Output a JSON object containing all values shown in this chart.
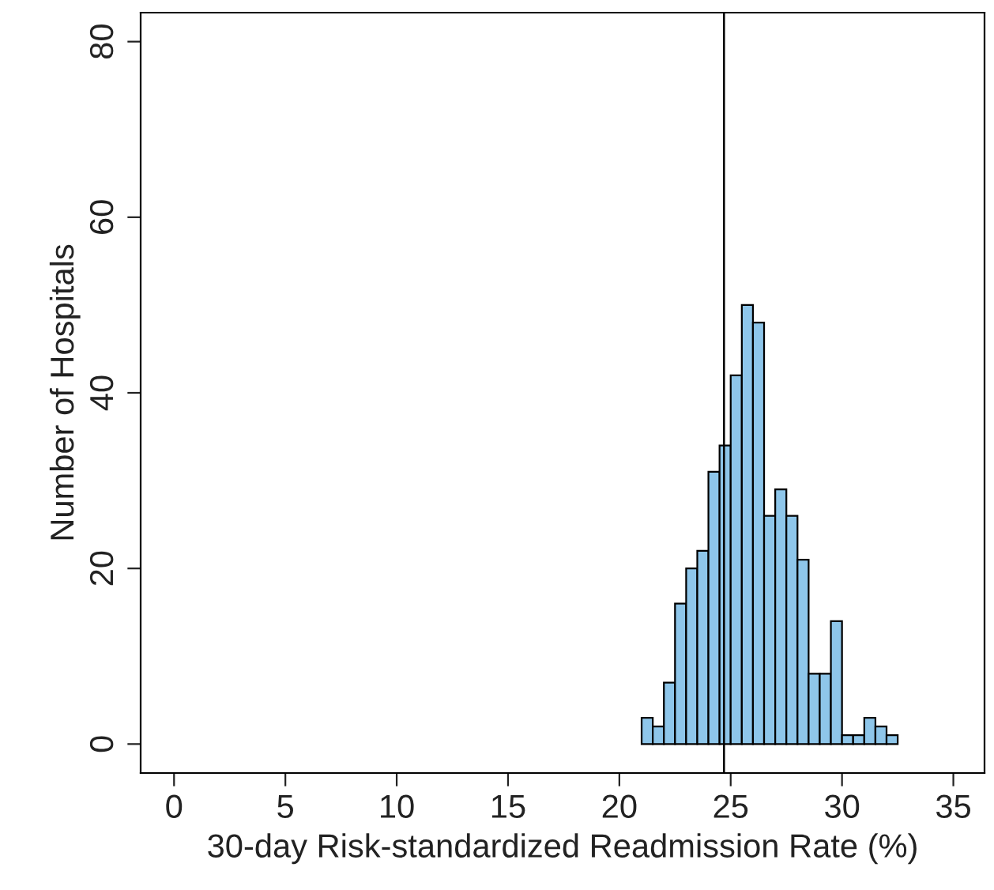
{
  "chart_data": {
    "type": "histogram",
    "xlabel": "30-day Risk-standardized Readmission Rate (%)",
    "ylabel": "Number of Hospitals",
    "bins": [
      21.0,
      21.5,
      22.0,
      22.5,
      23.0,
      23.5,
      24.0,
      24.5,
      25.0,
      25.5,
      26.0,
      26.5,
      27.0,
      27.5,
      28.0,
      28.5,
      29.0,
      29.5,
      30.0,
      30.5,
      31.0,
      31.5,
      32.0,
      32.5
    ],
    "values": [
      3,
      2,
      7,
      16,
      20,
      22,
      31,
      34,
      42,
      50,
      48,
      26,
      29,
      26,
      21,
      8,
      8,
      14,
      1,
      1,
      3,
      2,
      1
    ],
    "color": "#8ec6ea",
    "xlim": [
      -1.5,
      36.4
    ],
    "ylim": [
      -3.3,
      83.3
    ],
    "xticks": [
      0,
      5,
      10,
      15,
      20,
      25,
      30,
      35
    ],
    "yticks": [
      0,
      20,
      40,
      60,
      80
    ],
    "ref_lines": [
      {
        "axis": "x",
        "value": 24.7,
        "color": "#000000"
      }
    ],
    "grid": false
  }
}
